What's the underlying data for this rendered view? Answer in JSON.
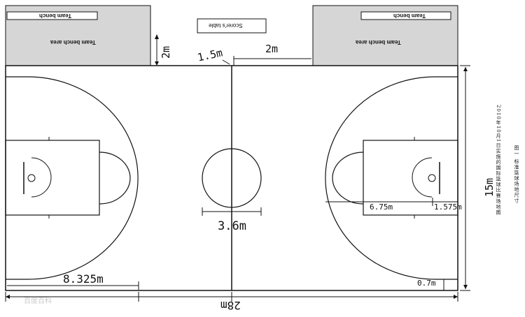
{
  "labels": {
    "scores_table": "Scorer's table",
    "team_bench_left": "Team bench",
    "team_bench_right": "Team bench",
    "team_bench_area_left": "Team bench area",
    "team_bench_area_right": "Team bench area",
    "dim_2m_vertical": "2m",
    "dim_1_5m": "1.5m",
    "dim_2m_horizontal": "2m",
    "dim_3_6m": "3.6m",
    "dim_6_75m": "6.75m",
    "dim_1_575m": "1.575m",
    "dim_15m": "15m",
    "dim_8_325m": "8.325m",
    "dim_0_7m": "0.7m",
    "dim_28m": "28m",
    "caption_main": "图一 标准篮球场地尺寸",
    "caption_sub": "2010年10月1日实施的国际篮球比赛场地图",
    "watermark": "百度百科"
  },
  "colors": {
    "line": "#111111",
    "bench_fill": "#d6d6d6"
  }
}
